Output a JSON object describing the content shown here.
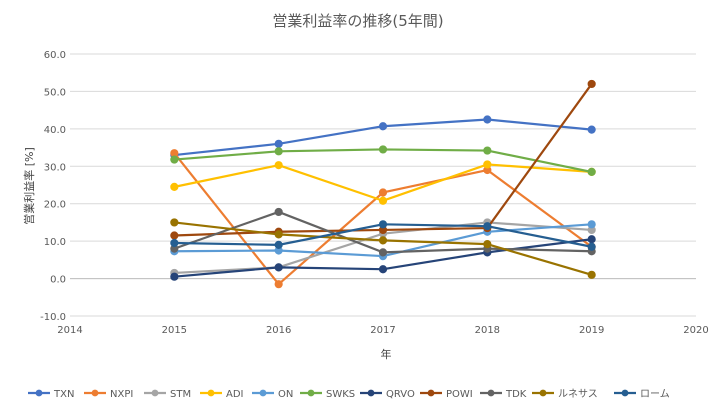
{
  "chart_data": {
    "type": "scatter",
    "title": "営業利益率の推移(5年間)",
    "xlabel": "年",
    "ylabel": "営業利益率 [%]",
    "xlim": [
      2014,
      2020
    ],
    "ylim": [
      -10,
      60
    ],
    "x_ticks": [
      2014,
      2015,
      2016,
      2017,
      2018,
      2019,
      2020
    ],
    "y_ticks": [
      -10,
      0,
      10,
      20,
      30,
      40,
      50,
      60
    ],
    "x_tick_labels": [
      "2014",
      "2015",
      "2016",
      "2017",
      "2018",
      "2019",
      "2020"
    ],
    "y_tick_labels": [
      "-10.0",
      "0.0",
      "10.0",
      "20.0",
      "30.0",
      "40.0",
      "50.0",
      "60.0"
    ],
    "grid": "horizontal",
    "legend_position": "bottom",
    "x": [
      2015,
      2016,
      2017,
      2018,
      2019
    ],
    "series": [
      {
        "name": "TXN",
        "color": "#4472C4",
        "values": [
          33.0,
          36.0,
          40.7,
          42.5,
          39.8
        ]
      },
      {
        "name": "NXPI",
        "color": "#ED7D31",
        "values": [
          33.5,
          -1.5,
          23.0,
          29.0,
          8.5
        ]
      },
      {
        "name": "STM",
        "color": "#A5A5A5",
        "values": [
          1.5,
          3.0,
          12.0,
          15.0,
          13.0
        ]
      },
      {
        "name": "ADI",
        "color": "#FFC000",
        "values": [
          24.5,
          30.3,
          20.8,
          30.5,
          28.5
        ]
      },
      {
        "name": "ON",
        "color": "#5B9BD5",
        "values": [
          7.3,
          7.5,
          6.0,
          12.5,
          14.5
        ]
      },
      {
        "name": "SWKS",
        "color": "#70AD47",
        "values": [
          31.8,
          34.0,
          34.5,
          34.2,
          28.5
        ]
      },
      {
        "name": "QRVO",
        "color": "#264478",
        "values": [
          0.5,
          3.0,
          2.5,
          7.0,
          10.5
        ]
      },
      {
        "name": "POWI",
        "color": "#9E480E",
        "values": [
          11.5,
          12.5,
          13.0,
          13.5,
          52.0
        ]
      },
      {
        "name": "TDK",
        "color": "#636363",
        "values": [
          8.0,
          17.8,
          7.0,
          8.0,
          7.3
        ]
      },
      {
        "name": "ルネサス",
        "color": "#997300",
        "values": [
          15.0,
          11.8,
          10.2,
          9.2,
          1.0
        ]
      },
      {
        "name": "ローム",
        "color": "#255E91",
        "values": [
          9.5,
          9.0,
          14.5,
          14.0,
          8.5
        ]
      }
    ]
  }
}
